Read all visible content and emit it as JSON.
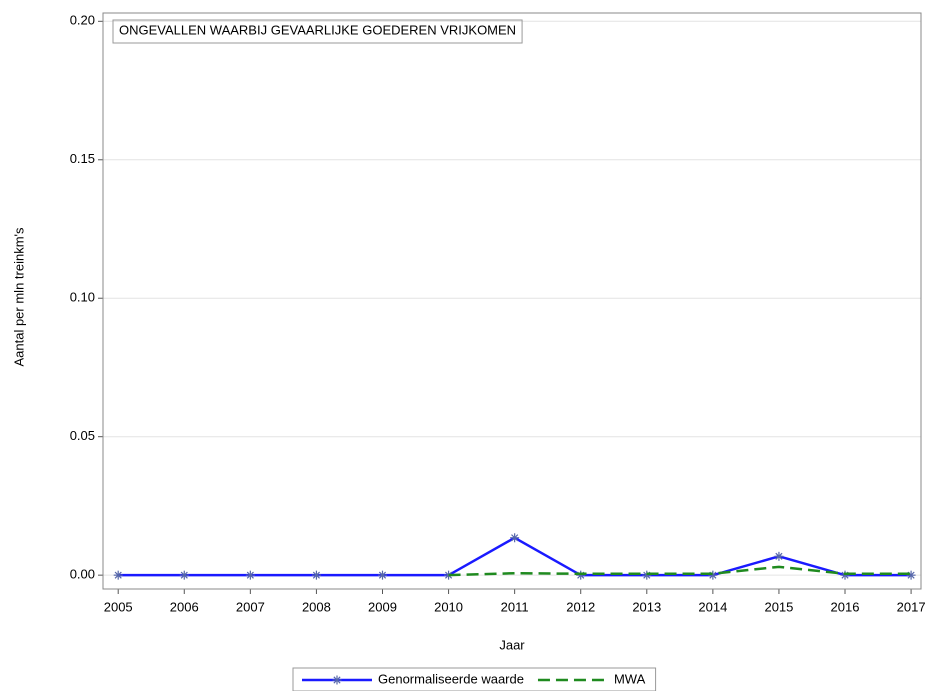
{
  "chart_data": {
    "type": "line",
    "title": "ONGEVALLEN WAARBIJ GEVAARLIJKE GOEDEREN VRIJKOMEN",
    "x_label": "Jaar",
    "y_label": "Aantal per mln treinkm's",
    "x": [
      2005,
      2006,
      2007,
      2008,
      2009,
      2010,
      2011,
      2012,
      2013,
      2014,
      2015,
      2016,
      2017
    ],
    "series": [
      {
        "name": "Genormaliseerde waarde",
        "color": "#1a1aff",
        "marker": "star",
        "dash": "solid",
        "values": [
          0,
          0,
          0,
          0,
          0,
          0,
          0.0135,
          0,
          0,
          0,
          0.0068,
          0,
          0
        ]
      },
      {
        "name": "MWA",
        "color": "#1f8a1f",
        "marker": "none",
        "dash": "dashed",
        "values": [
          null,
          null,
          null,
          null,
          null,
          0,
          0.0007,
          0.0005,
          0.0005,
          0.0005,
          0.003,
          0.0005,
          0.0005
        ]
      }
    ],
    "xlim": [
      2004.77,
      2017.15
    ],
    "xticks": [
      2005,
      2006,
      2007,
      2008,
      2009,
      2010,
      2011,
      2012,
      2013,
      2014,
      2015,
      2016,
      2017
    ],
    "ylim": [
      -0.005,
      0.203
    ],
    "yticks": [
      {
        "value": 0,
        "label": "0.00"
      },
      0.05,
      {
        "value": 0.1,
        "label": "0.10"
      },
      0.15,
      {
        "value": 0.2,
        "label": "0.20"
      }
    ],
    "grid": true,
    "legend": "bottom"
  }
}
